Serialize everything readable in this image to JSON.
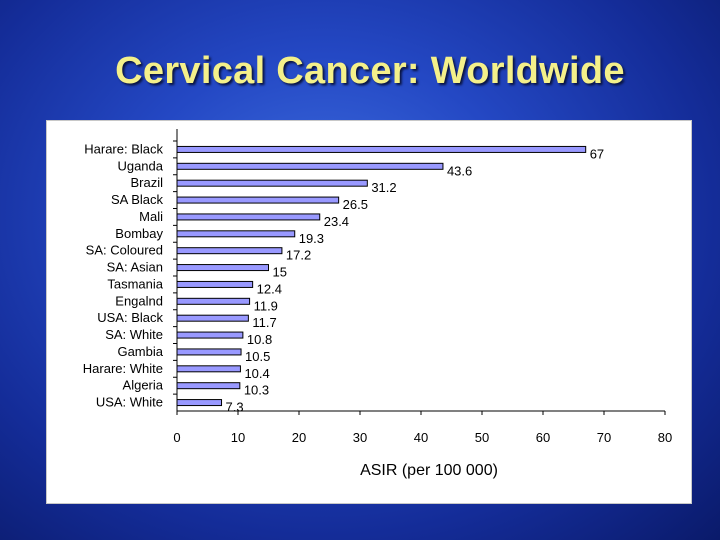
{
  "slide": {
    "title": "Cervical Cancer: Worldwide"
  },
  "chart_data": {
    "type": "bar",
    "orientation": "horizontal",
    "categories": [
      "Harare: Black",
      "Uganda",
      "Brazil",
      "SA Black",
      "Mali",
      "Bombay",
      "SA: Coloured",
      "SA: Asian",
      "Tasmania",
      "Engalnd",
      "USA: Black",
      "SA: White",
      "Gambia",
      "Harare: White",
      "Algeria",
      "USA: White"
    ],
    "values": [
      67,
      43.6,
      31.2,
      26.5,
      23.4,
      19.3,
      17.2,
      15,
      12.4,
      11.9,
      11.7,
      10.8,
      10.5,
      10.4,
      10.3,
      7.3
    ],
    "value_labels": [
      "67",
      "43.6",
      "31.2",
      "26.5",
      "23.4",
      "19.3",
      "17.2",
      "15",
      "12.4",
      "11.9",
      "11.7",
      "10.8",
      "10.5",
      "10.4",
      "10.3",
      "7.3"
    ],
    "xlabel": "ASIR (per 100 000)",
    "xlim": [
      0,
      80
    ],
    "xticks": [
      "0",
      "10",
      "20",
      "30",
      "40",
      "50",
      "60",
      "70",
      "80"
    ],
    "grid": false,
    "legend": "none",
    "bar_color": "#9999ff",
    "bar_edge_color": "#000000"
  }
}
